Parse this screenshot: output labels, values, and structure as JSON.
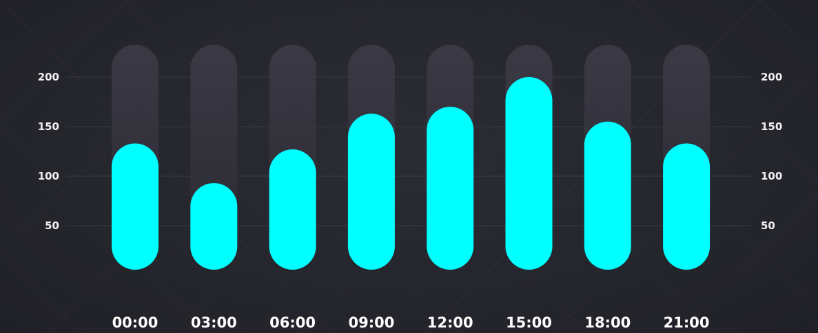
{
  "chart_data": {
    "type": "bar",
    "categories": [
      "00:00",
      "03:00",
      "06:00",
      "09:00",
      "12:00",
      "15:00",
      "18:00",
      "21:00"
    ],
    "values": [
      133,
      93,
      127,
      163,
      170,
      200,
      155,
      133
    ],
    "ylim": [
      0,
      225
    ],
    "yticks": [
      50,
      100,
      150,
      200
    ],
    "ytick_labels": [
      "50",
      "100",
      "150",
      "200"
    ],
    "grid": true,
    "colors": {
      "bar": "#00ffff",
      "track": "#35343f",
      "grid": "#4a4a55",
      "background": "#25252d",
      "text": "#ffffff"
    }
  }
}
